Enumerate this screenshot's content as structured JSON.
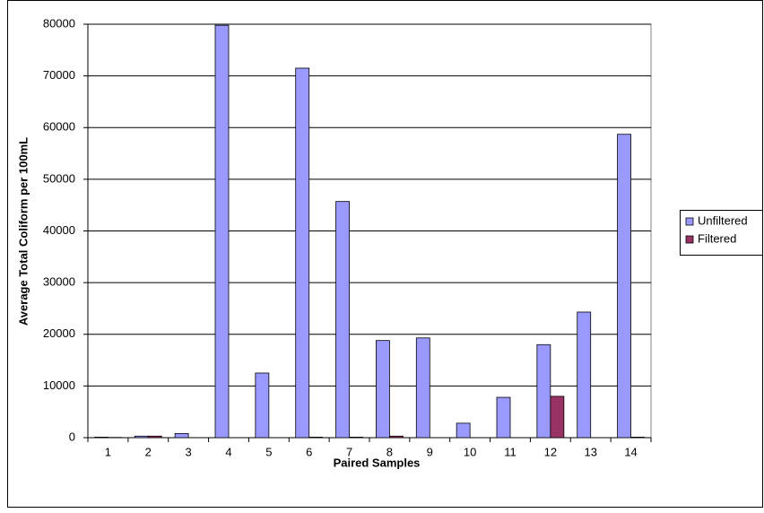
{
  "chart_data": {
    "type": "bar",
    "x_label": "Paired Samples",
    "y_label": "Average Total Coliform per 100mL",
    "categories": [
      "1",
      "2",
      "3",
      "4",
      "5",
      "6",
      "7",
      "8",
      "9",
      "10",
      "11",
      "12",
      "13",
      "14"
    ],
    "series": [
      {
        "name": "Unfiltered",
        "color": "#9999ff",
        "values": [
          100,
          300,
          800,
          79800,
          12500,
          71500,
          45700,
          18800,
          19300,
          2800,
          7800,
          18000,
          24300,
          58700
        ]
      },
      {
        "name": "Filtered",
        "color": "#993366",
        "values": [
          50,
          300,
          0,
          0,
          0,
          100,
          100,
          300,
          0,
          0,
          0,
          8000,
          0,
          100
        ]
      }
    ],
    "ylim": [
      0,
      80000
    ],
    "yticks": [
      0,
      10000,
      20000,
      30000,
      40000,
      50000,
      60000,
      70000,
      80000
    ],
    "grid": true,
    "legend": "right"
  }
}
